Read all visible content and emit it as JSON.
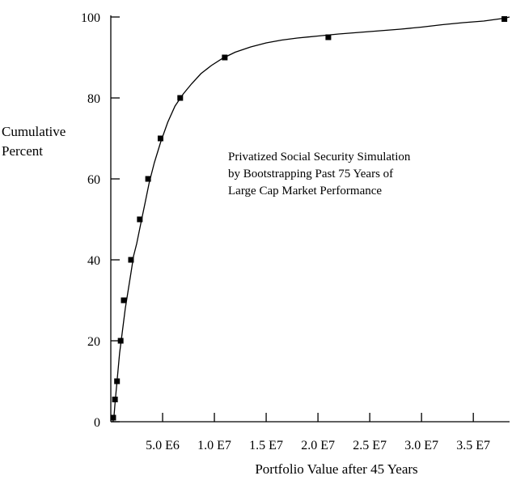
{
  "chart_data": {
    "type": "line",
    "title": "",
    "xlabel": "Portfolio Value after 45 Years",
    "ylabel": [
      "Cumulative",
      "Percent"
    ],
    "xlim": [
      0,
      38500000
    ],
    "ylim": [
      0,
      100
    ],
    "grid": false,
    "legend": "none",
    "annotation": [
      "Privatized Social Security Simulation",
      "by Bootstrapping Past 75 Years of",
      "Large Cap Market Performance"
    ],
    "x_ticks": [
      {
        "value": 5000000,
        "label": "5.0 E6"
      },
      {
        "value": 10000000,
        "label": "1.0 E7"
      },
      {
        "value": 15000000,
        "label": "1.5 E7"
      },
      {
        "value": 20000000,
        "label": "2.0 E7"
      },
      {
        "value": 25000000,
        "label": "2.5 E7"
      },
      {
        "value": 30000000,
        "label": "3.0 E7"
      },
      {
        "value": 35000000,
        "label": "3.5 E7"
      }
    ],
    "y_ticks": [
      {
        "value": 0,
        "label": "0"
      },
      {
        "value": 20,
        "label": "20"
      },
      {
        "value": 40,
        "label": "40"
      },
      {
        "value": 60,
        "label": "60"
      },
      {
        "value": 80,
        "label": "80"
      },
      {
        "value": 100,
        "label": "100"
      }
    ],
    "series": [
      {
        "curve": [
          [
            200000,
            0
          ],
          [
            300000,
            1
          ],
          [
            420000,
            5
          ],
          [
            600000,
            10
          ],
          [
            850000,
            17
          ],
          [
            1100000,
            22
          ],
          [
            1400000,
            28
          ],
          [
            1650000,
            32
          ],
          [
            1900000,
            36
          ],
          [
            2200000,
            41
          ],
          [
            2500000,
            44
          ],
          [
            2900000,
            49
          ],
          [
            3300000,
            54
          ],
          [
            3700000,
            59
          ],
          [
            4200000,
            64
          ],
          [
            4800000,
            69
          ],
          [
            5500000,
            74
          ],
          [
            6200000,
            78
          ],
          [
            7000000,
            81
          ],
          [
            7800000,
            83.5
          ],
          [
            8700000,
            86
          ],
          [
            9700000,
            88
          ],
          [
            10800000,
            89.8
          ],
          [
            12000000,
            91.3
          ],
          [
            13500000,
            92.6
          ],
          [
            15000000,
            93.6
          ],
          [
            16500000,
            94.3
          ],
          [
            18000000,
            94.8
          ],
          [
            20000000,
            95.3
          ],
          [
            22000000,
            95.8
          ],
          [
            24000000,
            96.2
          ],
          [
            26000000,
            96.6
          ],
          [
            28000000,
            97.0
          ],
          [
            30000000,
            97.5
          ],
          [
            32000000,
            98.1
          ],
          [
            34000000,
            98.6
          ],
          [
            36000000,
            99.0
          ],
          [
            38000000,
            99.7
          ],
          [
            38500000,
            100
          ]
        ],
        "markers": [
          [
            230000,
            1
          ],
          [
            400000,
            5.5
          ],
          [
            600000,
            10
          ],
          [
            950000,
            20
          ],
          [
            1250000,
            30
          ],
          [
            1950000,
            40
          ],
          [
            2800000,
            50
          ],
          [
            3600000,
            60
          ],
          [
            4800000,
            70
          ],
          [
            6700000,
            80
          ],
          [
            11000000,
            90
          ],
          [
            21000000,
            95
          ],
          [
            38000000,
            99.5
          ]
        ]
      }
    ]
  }
}
